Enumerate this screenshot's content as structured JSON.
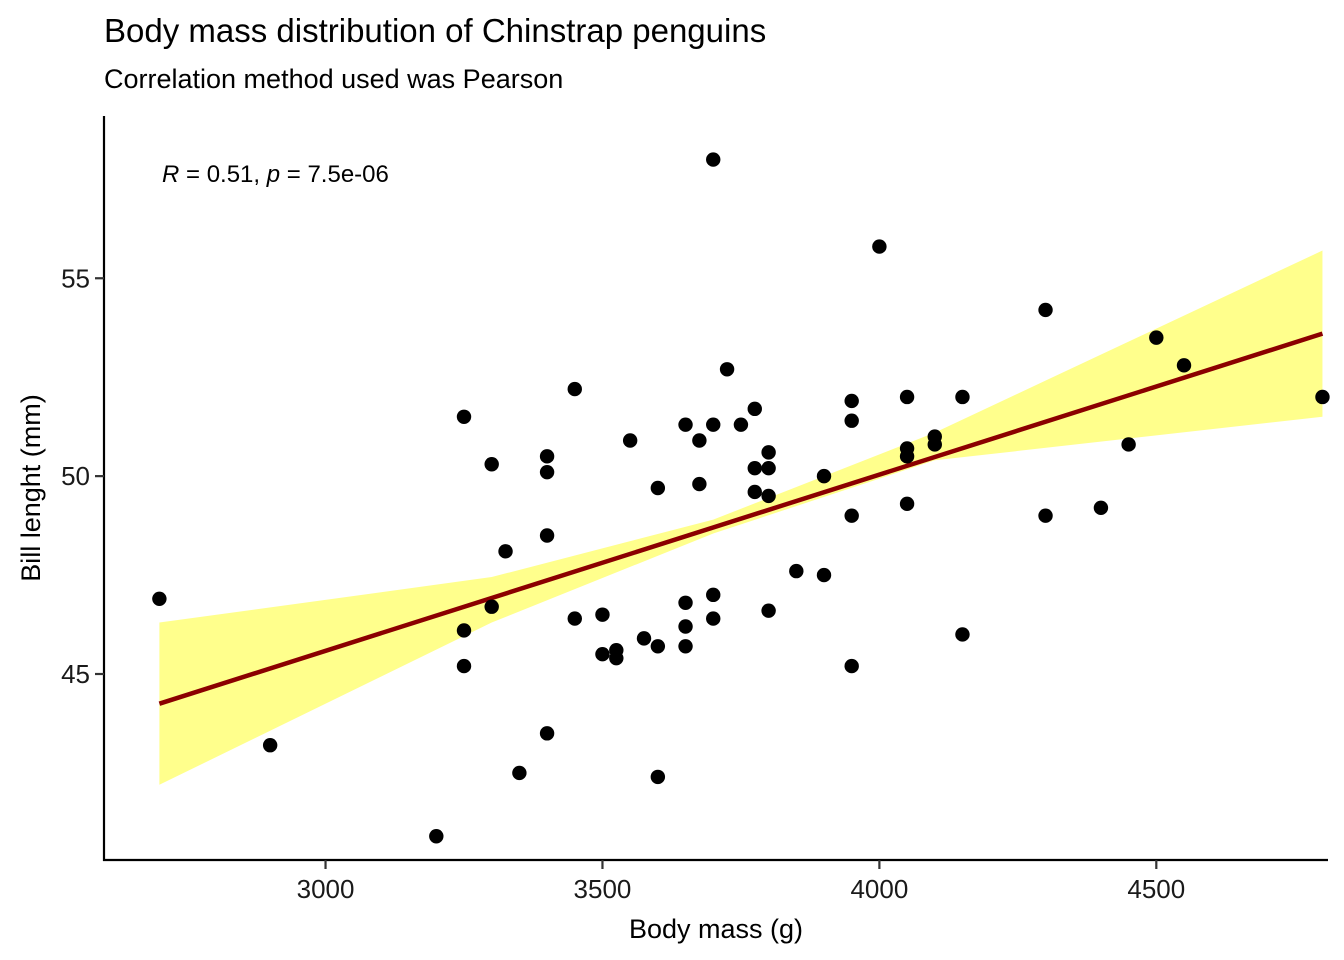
{
  "chart_data": {
    "type": "scatter",
    "title": "Body mass distribution of Chinstrap penguins",
    "subtitle": "Correlation method used was Pearson",
    "xlabel": "Body mass (g)",
    "ylabel": "Bill lenght (mm)",
    "xlim": [
      2600,
      4810
    ],
    "ylim": [
      40.3,
      59.1
    ],
    "xticks": [
      3000,
      3500,
      4000,
      4500
    ],
    "yticks": [
      45,
      50,
      55
    ],
    "grid": false,
    "annotation": {
      "r_label": "R",
      "r_value": " = 0.51, ",
      "p_label": "p",
      "p_value": " = 7.5e-06"
    },
    "colors": {
      "points": "#000000",
      "line": "#8B0000",
      "band": "#FFFF00",
      "band_opacity": 0.45
    },
    "regression": {
      "x": [
        2700,
        4800
      ],
      "y": [
        44.25,
        53.6
      ],
      "ci_low_x": [
        2700,
        3300,
        3700,
        4100,
        4800
      ],
      "ci_low_y": [
        42.2,
        46.3,
        48.55,
        50.4,
        51.5
      ],
      "ci_high_y": [
        46.3,
        47.45,
        48.9,
        51.1,
        55.7
      ]
    },
    "points": [
      [
        2700,
        46.9
      ],
      [
        2900,
        43.2
      ],
      [
        3200,
        40.9
      ],
      [
        3250,
        51.5
      ],
      [
        3250,
        46.1
      ],
      [
        3250,
        45.2
      ],
      [
        3300,
        50.3
      ],
      [
        3300,
        46.7
      ],
      [
        3325,
        48.1
      ],
      [
        3350,
        42.5
      ],
      [
        3400,
        50.5
      ],
      [
        3400,
        50.1
      ],
      [
        3400,
        48.5
      ],
      [
        3400,
        43.5
      ],
      [
        3450,
        52.2
      ],
      [
        3450,
        46.4
      ],
      [
        3500,
        46.5
      ],
      [
        3500,
        45.5
      ],
      [
        3525,
        45.6
      ],
      [
        3525,
        45.4
      ],
      [
        3550,
        50.9
      ],
      [
        3575,
        45.9
      ],
      [
        3600,
        49.7
      ],
      [
        3600,
        45.7
      ],
      [
        3600,
        42.4
      ],
      [
        3650,
        51.3
      ],
      [
        3650,
        46.8
      ],
      [
        3650,
        46.2
      ],
      [
        3650,
        45.7
      ],
      [
        3675,
        50.9
      ],
      [
        3675,
        49.8
      ],
      [
        3700,
        58.0
      ],
      [
        3700,
        51.3
      ],
      [
        3700,
        47.0
      ],
      [
        3700,
        46.4
      ],
      [
        3725,
        52.7
      ],
      [
        3750,
        51.3
      ],
      [
        3775,
        51.7
      ],
      [
        3775,
        50.2
      ],
      [
        3775,
        49.6
      ],
      [
        3800,
        50.6
      ],
      [
        3800,
        50.2
      ],
      [
        3800,
        49.5
      ],
      [
        3800,
        46.6
      ],
      [
        3850,
        47.6
      ],
      [
        3900,
        50.0
      ],
      [
        3900,
        47.5
      ],
      [
        3950,
        51.9
      ],
      [
        3950,
        51.4
      ],
      [
        3950,
        49.0
      ],
      [
        3950,
        45.2
      ],
      [
        4000,
        55.8
      ],
      [
        4050,
        52.0
      ],
      [
        4050,
        50.7
      ],
      [
        4050,
        50.5
      ],
      [
        4050,
        49.3
      ],
      [
        4100,
        51.0
      ],
      [
        4100,
        50.8
      ],
      [
        4150,
        52.0
      ],
      [
        4150,
        46.0
      ],
      [
        4300,
        54.2
      ],
      [
        4300,
        49.0
      ],
      [
        4400,
        49.2
      ],
      [
        4450,
        50.8
      ],
      [
        4500,
        53.5
      ],
      [
        4550,
        52.8
      ],
      [
        4800,
        52.0
      ]
    ]
  }
}
